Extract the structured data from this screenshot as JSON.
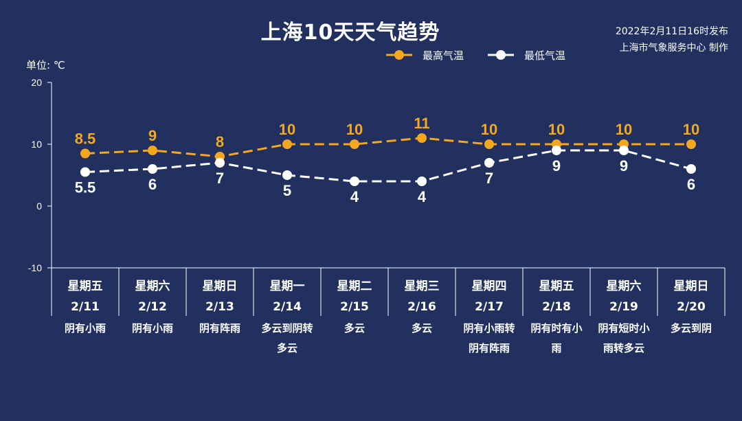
{
  "header": {
    "title": "上海10天天气趋势",
    "publish_time": "2022年2月11日16时发布",
    "publisher": "上海市气象服务中心 制作",
    "unit": "单位: ℃"
  },
  "colors": {
    "background": "#22305f",
    "high": "#f5a81f",
    "low": "#ffffff"
  },
  "chart_data": {
    "type": "line",
    "title": "上海10天天气趋势",
    "ylabel": "单位: ℃",
    "ylim": [
      -10,
      20
    ],
    "yticks": [
      20,
      10,
      0,
      -10
    ],
    "grid": false,
    "legend_position": "top-right",
    "categories": [
      {
        "week": "星期五",
        "date": "2/11",
        "weather": [
          "阴有小雨"
        ]
      },
      {
        "week": "星期六",
        "date": "2/12",
        "weather": [
          "阴有小雨"
        ]
      },
      {
        "week": "星期日",
        "date": "2/13",
        "weather": [
          "阴有阵雨"
        ]
      },
      {
        "week": "星期一",
        "date": "2/14",
        "weather": [
          "多云到阴转",
          "多云"
        ]
      },
      {
        "week": "星期二",
        "date": "2/15",
        "weather": [
          "多云"
        ]
      },
      {
        "week": "星期三",
        "date": "2/16",
        "weather": [
          "多云"
        ]
      },
      {
        "week": "星期四",
        "date": "2/17",
        "weather": [
          "阴有小雨转",
          "阴有阵雨"
        ]
      },
      {
        "week": "星期五",
        "date": "2/18",
        "weather": [
          "阴有时有小",
          "雨"
        ]
      },
      {
        "week": "星期六",
        "date": "2/19",
        "weather": [
          "阴有短时小",
          "雨转多云"
        ]
      },
      {
        "week": "星期日",
        "date": "2/20",
        "weather": [
          "多云到阴"
        ]
      }
    ],
    "series": [
      {
        "name": "最高气温",
        "key": "high",
        "values": [
          8.5,
          9,
          8,
          10,
          10,
          11,
          10,
          10,
          10,
          10
        ],
        "labels": [
          "8.5",
          "9",
          "8",
          "10",
          "10",
          "11",
          "10",
          "10",
          "10",
          "10"
        ]
      },
      {
        "name": "最低气温",
        "key": "low",
        "values": [
          5.5,
          6,
          7,
          5,
          4,
          4,
          7,
          9,
          9,
          6
        ],
        "labels": [
          "5.5",
          "6",
          "7",
          "5",
          "4",
          "4",
          "7",
          "9",
          "9",
          "6"
        ]
      }
    ]
  }
}
